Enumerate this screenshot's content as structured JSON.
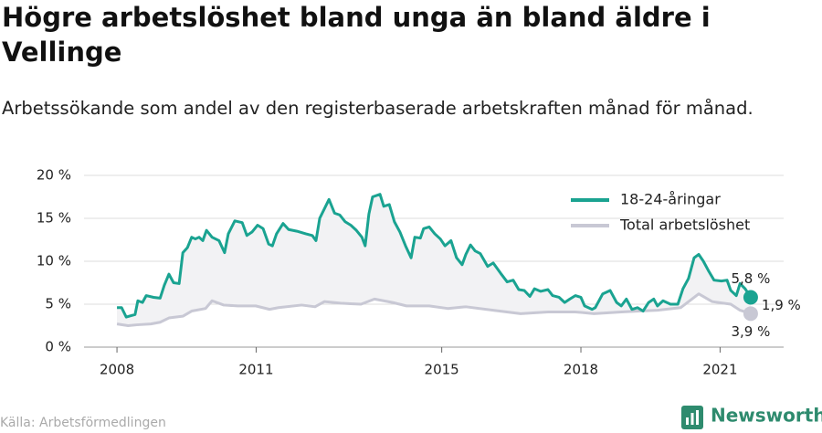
{
  "chart_data": {
    "type": "line",
    "title": "Högre arbetslöshet bland unga än bland äldre i Vellinge",
    "subtitle": "Arbetssökande som andel av den registerbaserade arbetskraften månad för månad.",
    "source": "Källa: Arbetsförmedlingen",
    "logo": "Newsworthy",
    "legend": "upper right",
    "grid": true,
    "xlim": [
      2007.29,
      2022.37
    ],
    "xticks": [
      2008,
      2011,
      2015,
      2018,
      2021
    ],
    "ylim": [
      0,
      20
    ],
    "yticks": [
      {
        "value": 0,
        "label": "0 %"
      },
      {
        "value": 5,
        "label": "5 %"
      },
      {
        "value": 10,
        "label": "10 %"
      },
      {
        "value": 15,
        "label": "15 %"
      },
      {
        "value": 20,
        "label": "20 %"
      }
    ],
    "annotations": [
      "5,8 %",
      "1,9 %",
      "3,9 %"
    ],
    "series": [
      {
        "name": "18-24-åringar",
        "color": "#1aa391",
        "x": [
          2008.0,
          2008.1,
          2008.2,
          2008.39,
          2008.45,
          2008.55,
          2008.63,
          2008.79,
          2008.93,
          2009.02,
          2009.12,
          2009.22,
          2009.34,
          2009.42,
          2009.52,
          2009.61,
          2009.69,
          2009.77,
          2009.85,
          2009.93,
          2010.05,
          2010.2,
          2010.32,
          2010.4,
          2010.54,
          2010.7,
          2010.8,
          2010.91,
          2011.03,
          2011.15,
          2011.27,
          2011.35,
          2011.44,
          2011.58,
          2011.7,
          2011.88,
          2012.07,
          2012.21,
          2012.29,
          2012.37,
          2012.57,
          2012.69,
          2012.8,
          2012.92,
          2013.04,
          2013.16,
          2013.28,
          2013.35,
          2013.43,
          2013.51,
          2013.67,
          2013.75,
          2013.87,
          2013.98,
          2014.1,
          2014.22,
          2014.34,
          2014.42,
          2014.54,
          2014.61,
          2014.73,
          2014.85,
          2014.97,
          2015.07,
          2015.2,
          2015.32,
          2015.44,
          2015.52,
          2015.62,
          2015.72,
          2015.83,
          2015.99,
          2016.11,
          2016.27,
          2016.41,
          2016.54,
          2016.66,
          2016.78,
          2016.9,
          2017.0,
          2017.13,
          2017.29,
          2017.39,
          2017.53,
          2017.65,
          2017.76,
          2017.88,
          2018.0,
          2018.08,
          2018.24,
          2018.31,
          2018.47,
          2018.63,
          2018.77,
          2018.87,
          2018.98,
          2019.1,
          2019.22,
          2019.34,
          2019.46,
          2019.57,
          2019.65,
          2019.77,
          2019.93,
          2020.09,
          2020.2,
          2020.32,
          2020.44,
          2020.54,
          2020.64,
          2020.76,
          2020.87,
          2021.03,
          2021.15,
          2021.23,
          2021.35,
          2021.43,
          2021.54,
          2021.66
        ],
        "values": [
          4.6,
          4.6,
          3.5,
          3.8,
          5.4,
          5.2,
          6.0,
          5.8,
          5.7,
          7.2,
          8.5,
          7.5,
          7.4,
          11.0,
          11.6,
          12.8,
          12.6,
          12.8,
          12.4,
          13.6,
          12.8,
          12.4,
          11.0,
          13.2,
          14.7,
          14.5,
          13.0,
          13.4,
          14.2,
          13.8,
          12.0,
          11.8,
          13.2,
          14.4,
          13.7,
          13.5,
          13.2,
          13.0,
          12.4,
          15.0,
          17.2,
          15.6,
          15.4,
          14.6,
          14.2,
          13.6,
          12.8,
          11.8,
          15.5,
          17.5,
          17.8,
          16.4,
          16.6,
          14.6,
          13.4,
          11.8,
          10.4,
          12.8,
          12.7,
          13.8,
          14.0,
          13.2,
          12.6,
          11.8,
          12.4,
          10.4,
          9.6,
          10.8,
          11.9,
          11.2,
          10.9,
          9.4,
          9.8,
          8.6,
          7.6,
          7.8,
          6.7,
          6.6,
          5.9,
          6.8,
          6.5,
          6.7,
          6.0,
          5.8,
          5.2,
          5.6,
          6.0,
          5.8,
          4.8,
          4.4,
          4.6,
          6.2,
          6.6,
          5.2,
          4.8,
          5.6,
          4.4,
          4.6,
          4.2,
          5.2,
          5.6,
          4.8,
          5.4,
          5.0,
          5.0,
          6.8,
          8.0,
          10.4,
          10.8,
          10.0,
          8.8,
          7.8,
          7.7,
          7.8,
          6.6,
          6.0,
          7.4,
          6.8,
          5.8
        ]
      },
      {
        "name": "Total arbetslöshet",
        "color": "#c8c8d4",
        "x": [
          2008.0,
          2008.24,
          2008.43,
          2008.73,
          2008.93,
          2009.12,
          2009.42,
          2009.61,
          2009.91,
          2010.05,
          2010.3,
          2010.6,
          2010.99,
          2011.29,
          2011.48,
          2011.98,
          2012.27,
          2012.47,
          2012.86,
          2013.26,
          2013.55,
          2013.94,
          2014.24,
          2014.73,
          2015.13,
          2015.52,
          2016.11,
          2016.7,
          2017.29,
          2017.88,
          2018.28,
          2018.87,
          2019.26,
          2019.65,
          2020.15,
          2020.54,
          2020.83,
          2021.23,
          2021.43,
          2021.66
        ],
        "values": [
          2.7,
          2.5,
          2.6,
          2.7,
          2.9,
          3.4,
          3.6,
          4.2,
          4.5,
          5.4,
          4.9,
          4.8,
          4.8,
          4.4,
          4.6,
          4.9,
          4.7,
          5.3,
          5.1,
          5.0,
          5.6,
          5.2,
          4.8,
          4.8,
          4.5,
          4.7,
          4.3,
          3.9,
          4.1,
          4.1,
          3.9,
          4.1,
          4.2,
          4.3,
          4.6,
          6.2,
          5.3,
          5.0,
          4.3,
          3.9
        ]
      }
    ]
  }
}
